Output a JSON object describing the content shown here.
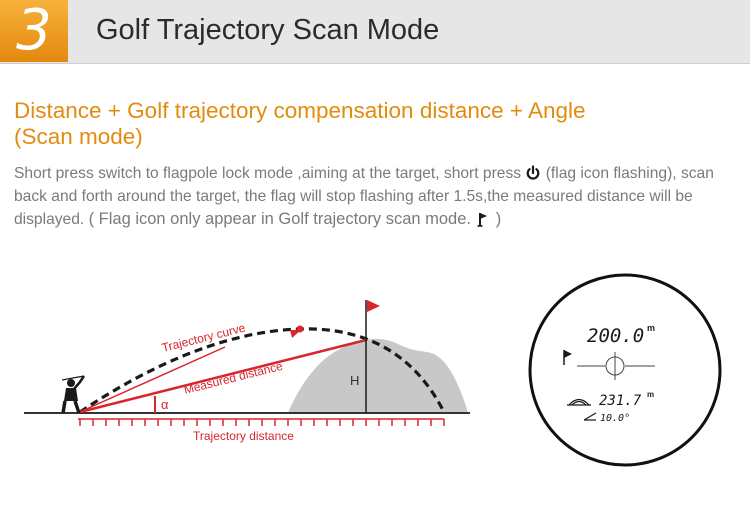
{
  "header": {
    "number": "3",
    "title": "Golf Trajectory Scan Mode"
  },
  "subtitle": {
    "line1": "Distance + Golf trajectory compensation distance + Angle",
    "line2": "(Scan mode)"
  },
  "description": {
    "part1": "Short press switch to flagpole lock mode ,aiming at the target, short press",
    "part2": "(flag icon flashing), scan back and forth around the target, the flag will stop flashing after 1.5s,the measured distance will be displayed. ",
    "note": "( Flag icon only appear in Golf trajectory scan mode.",
    "note_end": ")"
  },
  "diagram": {
    "trajectory_curve_label": "Trajectory curve",
    "measured_distance_label": "Measured distance",
    "trajectory_distance_label": "Trajectory distance",
    "alpha_label": "α",
    "height_label": "H",
    "accent_color": "#d9262c"
  },
  "scope_display": {
    "main_distance": "200.0",
    "main_unit": "m",
    "secondary_distance": "231.7",
    "secondary_unit": "m",
    "angle": "10.0°"
  },
  "icons": [
    "power-icon",
    "flag-icon",
    "golfer-icon",
    "pin-flag-icon",
    "crosshair-icon",
    "slope-icon",
    "angle-icon"
  ]
}
